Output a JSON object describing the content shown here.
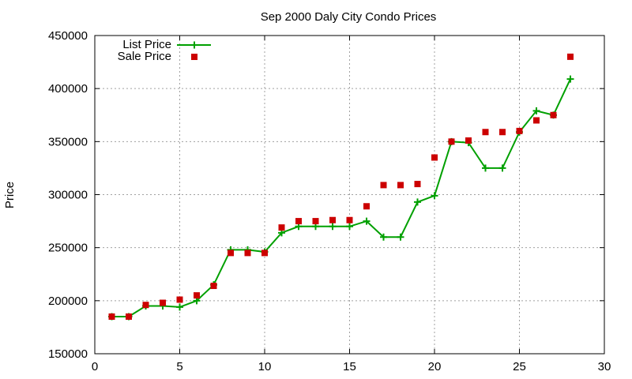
{
  "chart_data": {
    "type": "line",
    "title": "Sep 2000 Daly City Condo Prices",
    "xlabel": "",
    "ylabel": "Price",
    "xlim": [
      0,
      30
    ],
    "ylim": [
      150000,
      450000
    ],
    "x_ticks": [
      0,
      5,
      10,
      15,
      20,
      25,
      30
    ],
    "y_ticks": [
      150000,
      200000,
      250000,
      300000,
      350000,
      400000,
      450000
    ],
    "grid": true,
    "legend_position": "top-left",
    "series": [
      {
        "name": "List Price",
        "style": "line+plus-markers",
        "color": "#00a000",
        "x": [
          1,
          2,
          3,
          4,
          5,
          6,
          7,
          8,
          9,
          10,
          11,
          12,
          13,
          14,
          15,
          16,
          17,
          18,
          19,
          20,
          21,
          22,
          23,
          24,
          25,
          26,
          27,
          28
        ],
        "y": [
          185000,
          185000,
          195000,
          195000,
          194000,
          200000,
          215000,
          248000,
          248000,
          246000,
          264000,
          270000,
          270000,
          270000,
          270000,
          275000,
          260000,
          260000,
          293000,
          299000,
          350000,
          349000,
          325000,
          325000,
          359000,
          379000,
          375000,
          409000
        ]
      },
      {
        "name": "Sale Price",
        "style": "square-markers",
        "color": "#cc0000",
        "x": [
          1,
          2,
          3,
          4,
          5,
          6,
          7,
          8,
          9,
          10,
          11,
          12,
          13,
          14,
          15,
          16,
          17,
          18,
          19,
          20,
          21,
          22,
          23,
          24,
          25,
          26,
          27,
          28
        ],
        "y": [
          185000,
          185000,
          196000,
          198000,
          201000,
          205000,
          214000,
          245000,
          245000,
          245000,
          269000,
          275000,
          275000,
          276000,
          276000,
          289000,
          309000,
          309000,
          310000,
          335000,
          350000,
          351000,
          359000,
          359000,
          360000,
          370000,
          375000,
          430000
        ]
      }
    ]
  }
}
